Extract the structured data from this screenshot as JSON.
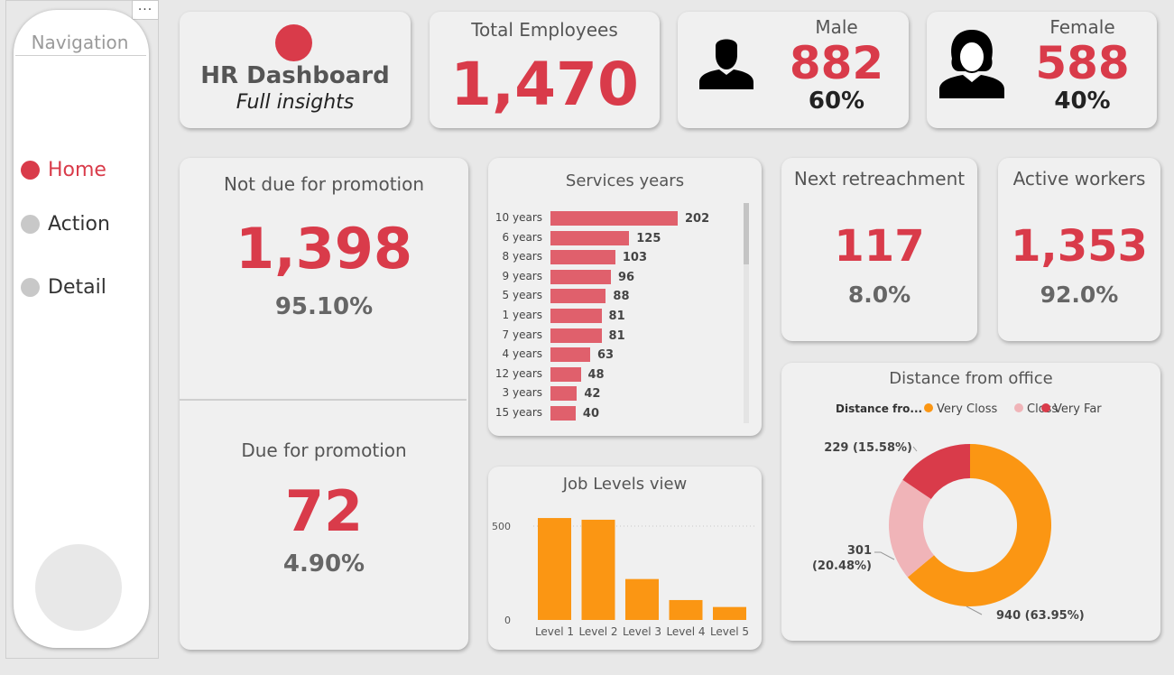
{
  "nav": {
    "title": "Navigation",
    "more": "...",
    "items": [
      {
        "label": "Home",
        "active": true
      },
      {
        "label": "Action",
        "active": false
      },
      {
        "label": "Detail",
        "active": false
      }
    ]
  },
  "header": {
    "title": "HR Dashboard",
    "subtitle": "Full insights"
  },
  "total": {
    "title": "Total Employees",
    "value": "1,470"
  },
  "male": {
    "title": "Male",
    "value": "882",
    "pct": "60%"
  },
  "female": {
    "title": "Female",
    "value": "588",
    "pct": "40%"
  },
  "not_due": {
    "title": "Not due for promotion",
    "value": "1,398",
    "pct": "95.10%"
  },
  "due": {
    "title": "Due for promotion",
    "value": "72",
    "pct": "4.90%"
  },
  "retrench": {
    "title": "Next retreachment",
    "value": "117",
    "pct": "8.0%"
  },
  "active": {
    "title": "Active workers",
    "value": "1,353",
    "pct": "92.0%"
  },
  "colors": {
    "accent": "#d93b4a",
    "bar": "#e0606c",
    "orange": "#fb9613",
    "pink": "#f0b4b8"
  },
  "chart_data": [
    {
      "type": "bar",
      "orientation": "horizontal",
      "title": "Services years",
      "categories": [
        "10 years",
        "6 years",
        "8 years",
        "9 years",
        "5 years",
        "1 years",
        "7 years",
        "4 years",
        "12 years",
        "3 years",
        "15 years"
      ],
      "values": [
        202,
        125,
        103,
        96,
        88,
        81,
        81,
        63,
        48,
        42,
        40
      ],
      "xlim": [
        0,
        202
      ]
    },
    {
      "type": "bar",
      "title": "Job Levels view",
      "categories": [
        "Level 1",
        "Level 2",
        "Level 3",
        "Level 4",
        "Level 5"
      ],
      "values": [
        543,
        534,
        218,
        106,
        69
      ],
      "ylim": [
        0,
        600
      ],
      "yticks": [
        "0",
        "500"
      ]
    },
    {
      "type": "pie",
      "donut": true,
      "title": "Distance from office",
      "legend_title": "Distance fro...",
      "legend_position": "top",
      "series": [
        {
          "name": "Very Closs",
          "value": 940,
          "label_lines": [
            "940 (63.95%)"
          ],
          "color": "#fb9613"
        },
        {
          "name": "Closs",
          "value": 301,
          "label_lines": [
            "301",
            "(20.48%)"
          ],
          "color": "#f0b4b8"
        },
        {
          "name": "Very Far",
          "value": 229,
          "label_lines": [
            "229 (15.58%)"
          ],
          "color": "#d93b4a"
        }
      ]
    }
  ]
}
